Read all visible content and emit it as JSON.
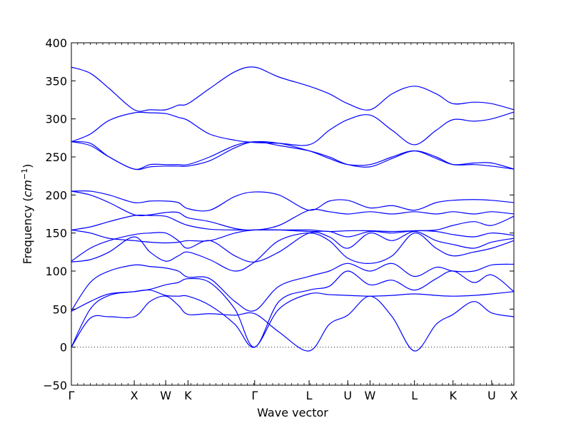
{
  "chart_data": {
    "type": "line",
    "title": "",
    "xlabel": "Wave vector",
    "ylabel": "Frequency",
    "ylabel_unit_base": "cm",
    "ylabel_unit_exp": "−1",
    "ylim": [
      -50,
      400
    ],
    "yticks": [
      -50,
      0,
      50,
      100,
      150,
      200,
      250,
      300,
      350,
      400
    ],
    "high_symmetry_points": [
      {
        "label": "Γ",
        "x": 0.0
      },
      {
        "label": "X",
        "x": 1.0
      },
      {
        "label": "W",
        "x": 1.5
      },
      {
        "label": "K",
        "x": 1.854
      },
      {
        "label": "Γ",
        "x": 2.914
      },
      {
        "label": "L",
        "x": 3.78
      },
      {
        "label": "U",
        "x": 4.394
      },
      {
        "label": "W",
        "x": 4.748
      },
      {
        "label": "L",
        "x": 5.455
      },
      {
        "label": "K",
        "x": 6.068
      },
      {
        "label": "U",
        "x": 6.682
      },
      {
        "label": "X",
        "x": 7.036
      }
    ],
    "xlim": [
      0,
      7.036
    ],
    "zero_line": true,
    "line_color": "#0000ff",
    "series": [
      {
        "x": [
          0,
          0.3,
          0.6,
          1.0,
          1.25,
          1.5,
          1.7,
          1.854,
          2.2,
          2.6,
          2.914,
          3.3,
          3.78,
          4.1,
          4.394,
          4.748,
          5.1,
          5.455,
          5.8,
          6.068,
          6.4,
          6.682,
          7.036
        ],
        "values": [
          0,
          38,
          40,
          40,
          60,
          67,
          55,
          43,
          44,
          42,
          44,
          20,
          -5,
          30,
          42,
          67,
          40,
          -5,
          30,
          43,
          60,
          45,
          40
        ]
      },
      {
        "x": [
          0,
          0.3,
          0.6,
          1.0,
          1.25,
          1.5,
          1.7,
          1.854,
          2.2,
          2.6,
          2.914,
          3.3,
          3.78,
          4.1,
          4.394,
          4.748,
          5.1,
          5.455,
          5.8,
          6.068,
          6.4,
          6.682,
          7.036
        ],
        "values": [
          0,
          50,
          68,
          73,
          75,
          68,
          67,
          67,
          55,
          30,
          0,
          50,
          70,
          69,
          68,
          67,
          68,
          70,
          68,
          67,
          68,
          70,
          73
        ]
      },
      {
        "x": [
          0,
          0.3,
          0.6,
          1.0,
          1.25,
          1.5,
          1.7,
          1.854,
          2.2,
          2.6,
          2.914,
          3.3,
          3.78,
          4.1,
          4.394,
          4.748,
          5.1,
          5.455,
          5.8,
          6.068,
          6.4,
          6.682,
          7.036
        ],
        "values": [
          47,
          60,
          70,
          73,
          76,
          82,
          85,
          90,
          85,
          50,
          0,
          60,
          75,
          80,
          100,
          82,
          88,
          75,
          90,
          100,
          85,
          95,
          73
        ]
      },
      {
        "x": [
          0,
          0.3,
          0.6,
          1.0,
          1.25,
          1.5,
          1.7,
          1.854,
          2.2,
          2.6,
          2.914,
          3.3,
          3.78,
          4.1,
          4.394,
          4.748,
          5.1,
          5.455,
          5.8,
          6.068,
          6.4,
          6.682,
          7.036
        ],
        "values": [
          48,
          85,
          100,
          108,
          106,
          104,
          100,
          92,
          90,
          60,
          48,
          80,
          93,
          100,
          110,
          100,
          110,
          93,
          105,
          100,
          100,
          108,
          109
        ]
      },
      {
        "x": [
          0,
          0.3,
          0.6,
          1.0,
          1.25,
          1.5,
          1.7,
          1.854,
          2.2,
          2.6,
          2.914,
          3.3,
          3.78,
          4.1,
          4.394,
          4.748,
          5.1,
          5.455,
          5.8,
          6.068,
          6.4,
          6.682,
          7.036
        ],
        "values": [
          112,
          115,
          125,
          145,
          125,
          113,
          120,
          125,
          115,
          100,
          112,
          140,
          150,
          140,
          117,
          110,
          120,
          150,
          130,
          120,
          125,
          130,
          140
        ]
      },
      {
        "x": [
          0,
          0.3,
          0.6,
          1.0,
          1.25,
          1.5,
          1.7,
          1.854,
          2.2,
          2.6,
          2.914,
          3.3,
          3.78,
          4.1,
          4.394,
          4.748,
          5.1,
          5.455,
          5.8,
          6.068,
          6.4,
          6.682,
          7.036
        ],
        "values": [
          113,
          130,
          140,
          148,
          150,
          150,
          140,
          130,
          140,
          120,
          112,
          125,
          150,
          145,
          130,
          150,
          140,
          152,
          140,
          135,
          130,
          138,
          143
        ]
      },
      {
        "x": [
          0,
          0.3,
          0.6,
          1.0,
          1.25,
          1.5,
          1.7,
          1.854,
          2.2,
          2.6,
          2.914,
          3.3,
          3.78,
          4.1,
          4.394,
          4.748,
          5.1,
          5.455,
          5.8,
          6.068,
          6.4,
          6.682,
          7.036
        ],
        "values": [
          154,
          150,
          143,
          140,
          138,
          137,
          138,
          140,
          140,
          150,
          154,
          154,
          152,
          152,
          145,
          152,
          150,
          153,
          152,
          148,
          145,
          150,
          147
        ]
      },
      {
        "x": [
          0,
          0.3,
          0.6,
          1.0,
          1.25,
          1.5,
          1.7,
          1.854,
          2.2,
          2.6,
          2.914,
          3.3,
          3.78,
          4.1,
          4.394,
          4.748,
          5.1,
          5.455,
          5.8,
          6.068,
          6.4,
          6.682,
          7.036
        ],
        "values": [
          154,
          158,
          165,
          173,
          173,
          172,
          165,
          160,
          155,
          154,
          154,
          154,
          154,
          152,
          153,
          153,
          152,
          153,
          154,
          160,
          165,
          160,
          172
        ]
      },
      {
        "x": [
          0,
          0.3,
          0.6,
          1.0,
          1.25,
          1.5,
          1.7,
          1.854,
          2.2,
          2.6,
          2.914,
          3.3,
          3.78,
          4.1,
          4.394,
          4.748,
          5.1,
          5.455,
          5.8,
          6.068,
          6.4,
          6.682,
          7.036
        ],
        "values": [
          205,
          200,
          190,
          174,
          174,
          177,
          177,
          170,
          165,
          156,
          154,
          160,
          180,
          178,
          175,
          178,
          175,
          178,
          175,
          178,
          175,
          178,
          175
        ]
      },
      {
        "x": [
          0,
          0.3,
          0.6,
          1.0,
          1.25,
          1.5,
          1.7,
          1.854,
          2.2,
          2.6,
          2.914,
          3.3,
          3.78,
          4.1,
          4.394,
          4.748,
          5.1,
          5.455,
          5.8,
          6.068,
          6.4,
          6.682,
          7.036
        ],
        "values": [
          205,
          205,
          200,
          190,
          192,
          192,
          190,
          182,
          180,
          198,
          204,
          200,
          180,
          192,
          193,
          183,
          186,
          180,
          190,
          193,
          194,
          193,
          190
        ]
      },
      {
        "x": [
          0,
          0.3,
          0.6,
          1.0,
          1.25,
          1.5,
          1.7,
          1.854,
          2.2,
          2.6,
          2.914,
          3.3,
          3.78,
          4.1,
          4.394,
          4.748,
          5.1,
          5.455,
          5.8,
          6.068,
          6.4,
          6.682,
          7.036
        ],
        "values": [
          270,
          265,
          250,
          234,
          240,
          240,
          240,
          240,
          250,
          265,
          270,
          268,
          258,
          248,
          240,
          240,
          250,
          258,
          248,
          240,
          242,
          242,
          234
        ]
      },
      {
        "x": [
          0,
          0.3,
          0.6,
          1.0,
          1.25,
          1.5,
          1.7,
          1.854,
          2.2,
          2.6,
          2.914,
          3.3,
          3.78,
          4.1,
          4.394,
          4.748,
          5.1,
          5.455,
          5.8,
          6.068,
          6.4,
          6.682,
          7.036
        ],
        "values": [
          270,
          268,
          250,
          234,
          237,
          238,
          238,
          238,
          245,
          262,
          270,
          265,
          258,
          250,
          240,
          237,
          248,
          258,
          250,
          240,
          240,
          238,
          234
        ]
      },
      {
        "x": [
          0,
          0.3,
          0.6,
          1.0,
          1.25,
          1.5,
          1.7,
          1.854,
          2.2,
          2.6,
          2.914,
          3.3,
          3.78,
          4.1,
          4.394,
          4.748,
          5.1,
          5.455,
          5.8,
          6.068,
          6.4,
          6.682,
          7.036
        ],
        "values": [
          270,
          280,
          298,
          308,
          308,
          307,
          302,
          298,
          280,
          272,
          269,
          268,
          266,
          285,
          299,
          305,
          285,
          266,
          285,
          299,
          297,
          300,
          309
        ]
      },
      {
        "x": [
          0,
          0.3,
          0.6,
          1.0,
          1.25,
          1.5,
          1.7,
          1.854,
          2.2,
          2.6,
          2.914,
          3.3,
          3.78,
          4.1,
          4.394,
          4.748,
          5.1,
          5.455,
          5.8,
          6.068,
          6.4,
          6.682,
          7.036
        ],
        "values": [
          368,
          360,
          340,
          312,
          312,
          312,
          318,
          320,
          340,
          362,
          368,
          355,
          343,
          333,
          320,
          312,
          333,
          343,
          333,
          320,
          322,
          320,
          312
        ]
      }
    ]
  }
}
